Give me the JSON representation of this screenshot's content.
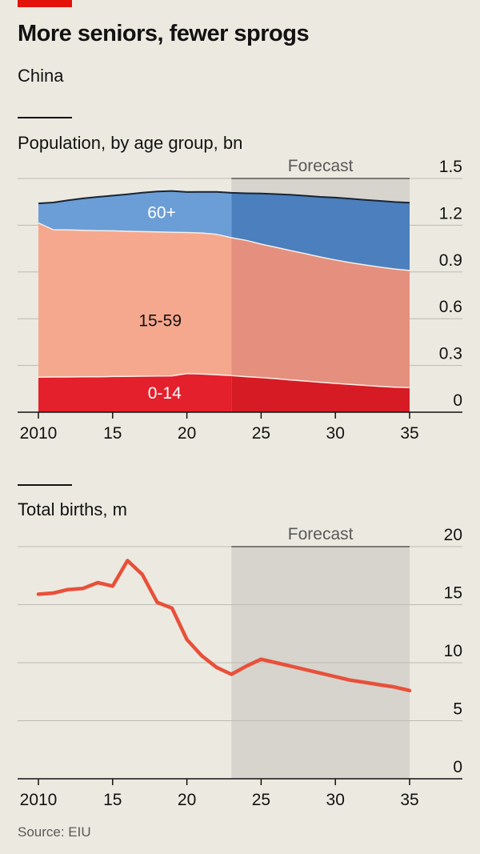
{
  "header": {
    "title": "More seniors, fewer sprogs",
    "subtitle": "China",
    "source": "Source: EIU",
    "brand_color": "#E3120B"
  },
  "chart_data": [
    {
      "type": "area",
      "stacked": true,
      "title": "Population, by age group, bn",
      "x": [
        2010,
        2011,
        2012,
        2013,
        2014,
        2015,
        2016,
        2017,
        2018,
        2019,
        2020,
        2021,
        2022,
        2023,
        2024,
        2025,
        2026,
        2027,
        2028,
        2029,
        2030,
        2031,
        2032,
        2033,
        2034,
        2035
      ],
      "x_tick_labels": [
        "2010",
        "15",
        "20",
        "25",
        "30",
        "35"
      ],
      "x_ticks": [
        2010,
        2015,
        2020,
        2025,
        2030,
        2035
      ],
      "ylim": [
        0,
        1.5
      ],
      "y_ticks": [
        0,
        0.3,
        0.6,
        0.9,
        1.2,
        1.5
      ],
      "y_tick_labels": [
        "0",
        "0.3",
        "0.6",
        "0.9",
        "1.2",
        "1.5"
      ],
      "forecast": {
        "label": "Forecast",
        "from": 2023,
        "to": 2035
      },
      "series": [
        {
          "name": "0-14",
          "color": "#E3202B",
          "forecast_color": "#D61B24",
          "values": [
            0.225,
            0.226,
            0.226,
            0.227,
            0.227,
            0.229,
            0.23,
            0.231,
            0.232,
            0.233,
            0.248,
            0.245,
            0.24,
            0.235,
            0.228,
            0.222,
            0.215,
            0.207,
            0.2,
            0.192,
            0.185,
            0.178,
            0.172,
            0.166,
            0.161,
            0.157
          ]
        },
        {
          "name": "15-59",
          "color": "#F6A88E",
          "forecast_color": "#E58F7E",
          "values": [
            0.99,
            0.945,
            0.944,
            0.94,
            0.938,
            0.935,
            0.931,
            0.928,
            0.925,
            0.922,
            0.905,
            0.905,
            0.902,
            0.885,
            0.875,
            0.857,
            0.843,
            0.83,
            0.817,
            0.804,
            0.792,
            0.782,
            0.773,
            0.765,
            0.758,
            0.753
          ]
        },
        {
          "name": "60+",
          "color": "#6B9ED6",
          "forecast_color": "#4B7FBD",
          "values": [
            0.125,
            0.175,
            0.19,
            0.205,
            0.217,
            0.226,
            0.238,
            0.25,
            0.26,
            0.265,
            0.26,
            0.264,
            0.272,
            0.288,
            0.302,
            0.325,
            0.342,
            0.358,
            0.372,
            0.386,
            0.4,
            0.41,
            0.418,
            0.425,
            0.43,
            0.435
          ]
        }
      ]
    },
    {
      "type": "line",
      "title": "Total births, m",
      "x": [
        2010,
        2011,
        2012,
        2013,
        2014,
        2015,
        2016,
        2017,
        2018,
        2019,
        2020,
        2021,
        2022,
        2023,
        2024,
        2025,
        2026,
        2027,
        2028,
        2029,
        2030,
        2031,
        2032,
        2033,
        2034,
        2035
      ],
      "x_tick_labels": [
        "2010",
        "15",
        "20",
        "25",
        "30",
        "35"
      ],
      "x_ticks": [
        2010,
        2015,
        2020,
        2025,
        2030,
        2035
      ],
      "ylim": [
        0,
        20
      ],
      "y_ticks": [
        0,
        5,
        10,
        15,
        20
      ],
      "y_tick_labels": [
        "0",
        "5",
        "10",
        "15",
        "20"
      ],
      "forecast": {
        "label": "Forecast",
        "from": 2023,
        "to": 2035
      },
      "series": [
        {
          "color": "#E8503A",
          "values": [
            15.9,
            16.0,
            16.3,
            16.4,
            16.9,
            16.6,
            18.8,
            17.6,
            15.2,
            14.7,
            12.0,
            10.6,
            9.6,
            9.0,
            9.7,
            10.3,
            10.0,
            9.7,
            9.4,
            9.1,
            8.8,
            8.5,
            8.3,
            8.1,
            7.9,
            7.6
          ]
        }
      ]
    }
  ]
}
